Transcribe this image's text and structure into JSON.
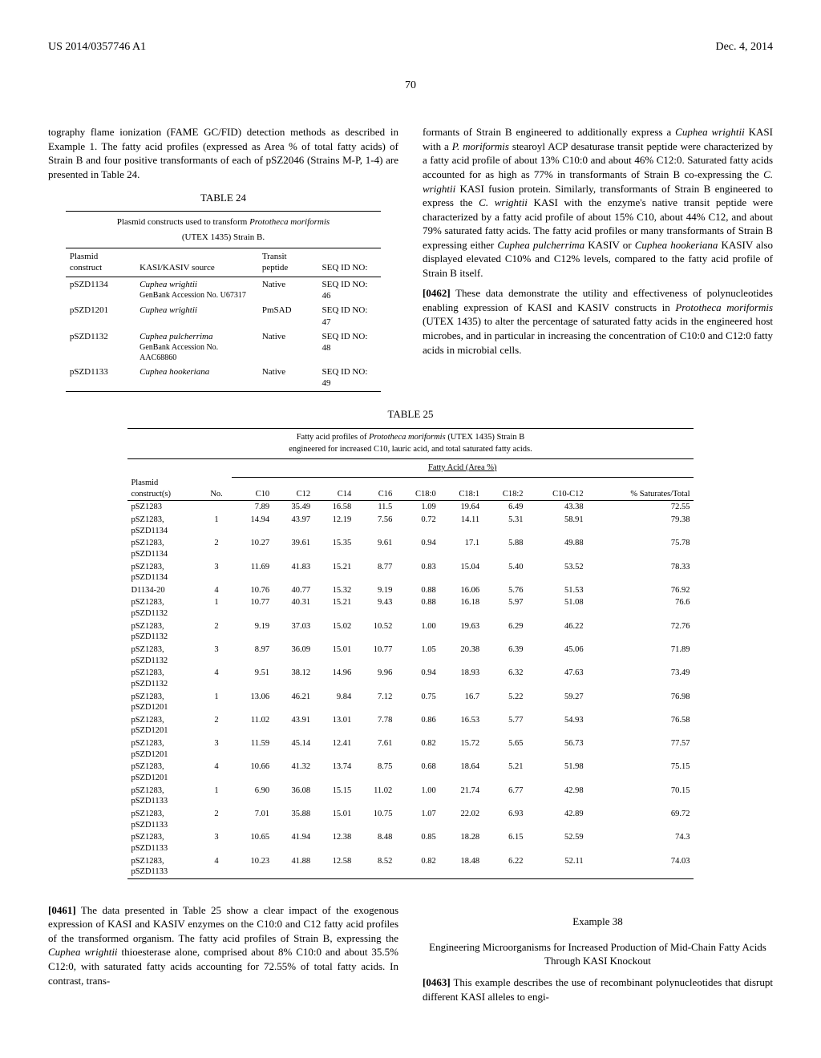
{
  "header": {
    "patent_number": "US 2014/0357746 A1",
    "date": "Dec. 4, 2014",
    "page_number": "70"
  },
  "left_col": {
    "intro_text": "tography flame ionization (FAME GC/FID) detection methods as described in Example 1. The fatty acid profiles (expressed as Area % of total fatty acids) of Strain B and four positive transformants of each of pSZ2046 (Strains M-P, 1-4) are presented in Table 24.",
    "table24_title": "TABLE 24",
    "table24_caption_line1": "Plasmid constructs used to transform",
    "table24_caption_italic": "Prototheca moriformis",
    "table24_caption_line2": "(UTEX 1435) Strain B.",
    "table24_headers": {
      "col1": "Plasmid construct",
      "col2": "KASI/KASIV source",
      "col3": "Transit peptide",
      "col4": "SEQ ID NO:"
    },
    "table24_rows": [
      {
        "c1": "pSZD1134",
        "c2_italic": "Cuphea wrightii",
        "c2_sub": "GenBank Accession No. U67317",
        "c3": "Native",
        "c4": "SEQ ID NO: 46"
      },
      {
        "c1": "pSZD1201",
        "c2_italic": "Cuphea wrightii",
        "c2_sub": "",
        "c3": "PmSAD",
        "c4": "SEQ ID NO: 47"
      },
      {
        "c1": "pSZD1132",
        "c2_italic": "Cuphea pulcherrima",
        "c2_sub": "GenBank Accession No. AAC68860",
        "c3": "Native",
        "c4": "SEQ ID NO: 48"
      },
      {
        "c1": "pSZD1133",
        "c2_italic": "Cuphea hookeriana",
        "c2_sub": "",
        "c3": "Native",
        "c4": "SEQ ID NO: 49"
      }
    ]
  },
  "right_col": {
    "para1": "formants of Strain B engineered to additionally express a",
    "para1_italic1": "Cuphea wrightii",
    "para1_cont1": " KASI with a ",
    "para1_italic2": "P. moriformis",
    "para1_cont2": " stearoyl ACP desaturase transit peptide were characterized by a fatty acid profile of about 13% C10:0 and about 46% C12:0. Saturated fatty acids accounted for as high as 77% in transformants of Strain B co-expressing the ",
    "para1_italic3": "C. wrightii",
    "para1_cont3": " KASI fusion protein. Similarly, transformants of Strain B engineered to express the ",
    "para1_italic4": "C. wrightii",
    "para1_cont4": " KASI with the enzyme's native transit peptide were characterized by a fatty acid profile of about 15% C10, about 44% C12, and about 79% saturated fatty acids. The fatty acid profiles or many transformants of Strain B expressing either ",
    "para1_italic5": "Cuphea pulcherrima",
    "para1_cont5": " KASIV or ",
    "para1_italic6": "Cuphea hookeriana",
    "para1_cont6": " KASIV also displayed elevated C10% and C12% levels, compared to the fatty acid profile of Strain B itself.",
    "para0462_num": "[0462]",
    "para0462": " These data demonstrate the utility and effectiveness of polynucleotides enabling expression of KASI and KASIV constructs in ",
    "para0462_italic": "Prototheca moriformis",
    "para0462_cont": " (UTEX 1435) to alter the percentage of saturated fatty acids in the engineered host microbes, and in particular in increasing the concentration of C10:0 and C12:0 fatty acids in microbial cells."
  },
  "table25": {
    "title": "TABLE 25",
    "caption_line1": "Fatty acid profiles of",
    "caption_italic": "Prototheca moriformis",
    "caption_line2": "(UTEX 1435) Strain B",
    "caption_line3": "engineered for increased C10, lauric acid, and total saturated fatty acids.",
    "group_header": "Fatty Acid (Area %)",
    "headers": {
      "col1": "Plasmid construct(s)",
      "col2": "No.",
      "col3": "C10",
      "col4": "C12",
      "col5": "C14",
      "col6": "C16",
      "col7": "C18:0",
      "col8": "C18:1",
      "col9": "C18:2",
      "col10": "C10-C12",
      "col11": "% Saturates/Total"
    },
    "rows": [
      {
        "c1": "pSZ1283",
        "c2": "",
        "c3": "7.89",
        "c4": "35.49",
        "c5": "16.58",
        "c6": "11.5",
        "c7": "1.09",
        "c8": "19.64",
        "c9": "6.49",
        "c10": "43.38",
        "c11": "72.55"
      },
      {
        "c1": "pSZ1283, pSZD1134",
        "c2": "1",
        "c3": "14.94",
        "c4": "43.97",
        "c5": "12.19",
        "c6": "7.56",
        "c7": "0.72",
        "c8": "14.11",
        "c9": "5.31",
        "c10": "58.91",
        "c11": "79.38"
      },
      {
        "c1": "pSZ1283, pSZD1134",
        "c2": "2",
        "c3": "10.27",
        "c4": "39.61",
        "c5": "15.35",
        "c6": "9.61",
        "c7": "0.94",
        "c8": "17.1",
        "c9": "5.88",
        "c10": "49.88",
        "c11": "75.78"
      },
      {
        "c1": "pSZ1283, pSZD1134",
        "c2": "3",
        "c3": "11.69",
        "c4": "41.83",
        "c5": "15.21",
        "c6": "8.77",
        "c7": "0.83",
        "c8": "15.04",
        "c9": "5.40",
        "c10": "53.52",
        "c11": "78.33"
      },
      {
        "c1": "D1134-20",
        "c2": "4",
        "c3": "10.76",
        "c4": "40.77",
        "c5": "15.32",
        "c6": "9.19",
        "c7": "0.88",
        "c8": "16.06",
        "c9": "5.76",
        "c10": "51.53",
        "c11": "76.92"
      },
      {
        "c1": "pSZ1283, pSZD1132",
        "c2": "1",
        "c3": "10.77",
        "c4": "40.31",
        "c5": "15.21",
        "c6": "9.43",
        "c7": "0.88",
        "c8": "16.18",
        "c9": "5.97",
        "c10": "51.08",
        "c11": "76.6"
      },
      {
        "c1": "pSZ1283, pSZD1132",
        "c2": "2",
        "c3": "9.19",
        "c4": "37.03",
        "c5": "15.02",
        "c6": "10.52",
        "c7": "1.00",
        "c8": "19.63",
        "c9": "6.29",
        "c10": "46.22",
        "c11": "72.76"
      },
      {
        "c1": "pSZ1283, pSZD1132",
        "c2": "3",
        "c3": "8.97",
        "c4": "36.09",
        "c5": "15.01",
        "c6": "10.77",
        "c7": "1.05",
        "c8": "20.38",
        "c9": "6.39",
        "c10": "45.06",
        "c11": "71.89"
      },
      {
        "c1": "pSZ1283, pSZD1132",
        "c2": "4",
        "c3": "9.51",
        "c4": "38.12",
        "c5": "14.96",
        "c6": "9.96",
        "c7": "0.94",
        "c8": "18.93",
        "c9": "6.32",
        "c10": "47.63",
        "c11": "73.49"
      },
      {
        "c1": "pSZ1283, pSZD1201",
        "c2": "1",
        "c3": "13.06",
        "c4": "46.21",
        "c5": "9.84",
        "c6": "7.12",
        "c7": "0.75",
        "c8": "16.7",
        "c9": "5.22",
        "c10": "59.27",
        "c11": "76.98"
      },
      {
        "c1": "pSZ1283, pSZD1201",
        "c2": "2",
        "c3": "11.02",
        "c4": "43.91",
        "c5": "13.01",
        "c6": "7.78",
        "c7": "0.86",
        "c8": "16.53",
        "c9": "5.77",
        "c10": "54.93",
        "c11": "76.58"
      },
      {
        "c1": "pSZ1283, pSZD1201",
        "c2": "3",
        "c3": "11.59",
        "c4": "45.14",
        "c5": "12.41",
        "c6": "7.61",
        "c7": "0.82",
        "c8": "15.72",
        "c9": "5.65",
        "c10": "56.73",
        "c11": "77.57"
      },
      {
        "c1": "pSZ1283, pSZD1201",
        "c2": "4",
        "c3": "10.66",
        "c4": "41.32",
        "c5": "13.74",
        "c6": "8.75",
        "c7": "0.68",
        "c8": "18.64",
        "c9": "5.21",
        "c10": "51.98",
        "c11": "75.15"
      },
      {
        "c1": "pSZ1283, pSZD1133",
        "c2": "1",
        "c3": "6.90",
        "c4": "36.08",
        "c5": "15.15",
        "c6": "11.02",
        "c7": "1.00",
        "c8": "21.74",
        "c9": "6.77",
        "c10": "42.98",
        "c11": "70.15"
      },
      {
        "c1": "pSZ1283, pSZD1133",
        "c2": "2",
        "c3": "7.01",
        "c4": "35.88",
        "c5": "15.01",
        "c6": "10.75",
        "c7": "1.07",
        "c8": "22.02",
        "c9": "6.93",
        "c10": "42.89",
        "c11": "69.72"
      },
      {
        "c1": "pSZ1283, pSZD1133",
        "c2": "3",
        "c3": "10.65",
        "c4": "41.94",
        "c5": "12.38",
        "c6": "8.48",
        "c7": "0.85",
        "c8": "18.28",
        "c9": "6.15",
        "c10": "52.59",
        "c11": "74.3"
      },
      {
        "c1": "pSZ1283, pSZD1133",
        "c2": "4",
        "c3": "10.23",
        "c4": "41.88",
        "c5": "12.58",
        "c6": "8.52",
        "c7": "0.82",
        "c8": "18.48",
        "c9": "6.22",
        "c10": "52.11",
        "c11": "74.03"
      }
    ]
  },
  "bottom_left": {
    "para0461_num": "[0461]",
    "para0461_text": " The data presented in Table 25 show a clear impact of the exogenous expression of KASI and KASIV enzymes on the C10:0 and C12 fatty acid profiles of the transformed organism. The fatty acid profiles of Strain B, expressing the ",
    "para0461_italic": "Cuphea wrightii",
    "para0461_cont": " thioesterase alone, comprised about 8% C10:0 and about 35.5% C12:0, with saturated fatty acids accounting for 72.55% of total fatty acids. In contrast, trans-"
  },
  "bottom_right": {
    "example_title": "Example 38",
    "subtitle": "Engineering Microorganisms for Increased Production of Mid-Chain Fatty Acids Through KASI Knockout",
    "para0463_num": "[0463]",
    "para0463_text": " This example describes the use of recombinant polynucleotides that disrupt different KASI alleles to engi-"
  }
}
